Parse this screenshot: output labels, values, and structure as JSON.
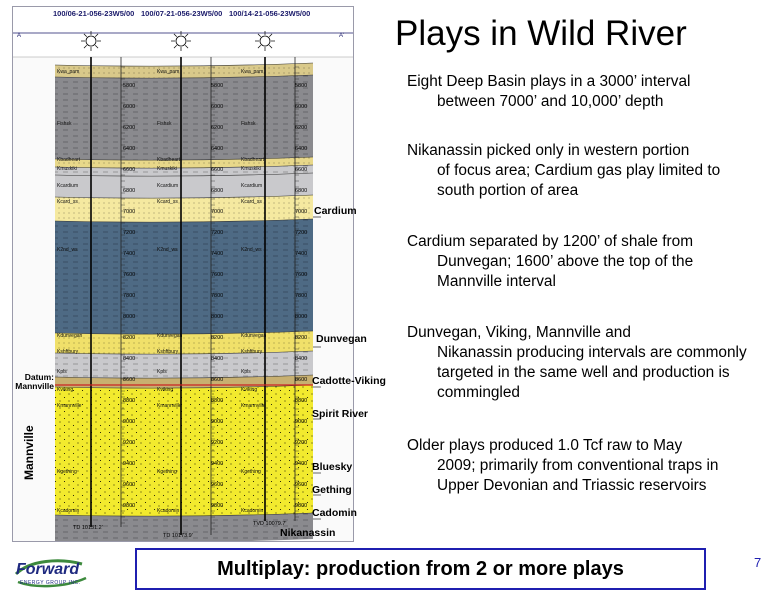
{
  "slide": {
    "title": "Plays in Wild River",
    "page_number": "7",
    "banner": "Multiplay: production from 2 or more plays"
  },
  "paragraphs": [
    {
      "first": "Eight Deep Basin plays in a 3000’ interval",
      "rest": "between 7000’ and 10,000’ depth"
    },
    {
      "first": "Nikanassin picked only in western portion",
      "rest": "of focus area; Cardium gas play limited to south portion of area"
    },
    {
      "first": "Cardium separated by 1200’ of shale from",
      "rest": "Dunvegan; 1600’ above the top of the Mannville interval"
    },
    {
      "first": "Dunvegan, Viking, Mannville and",
      "rest": "Nikanassin producing intervals are commonly targeted in the same well and production is commingled"
    },
    {
      "first": "Older plays produced 1.0 Tcf raw to May",
      "rest": "2009; primarily from conventional traps in Upper Devonian and Triassic reservoirs"
    }
  ],
  "cross_section": {
    "wells": [
      "100/06-21-056-23W5/00",
      "100/07-21-056-23W5/00",
      "100/14-21-056-23W5/00"
    ],
    "td_labels": [
      "TD 10131.2'",
      "TD 10173.9'",
      "TVD 10079.7'"
    ],
    "datum_label": "Datum:\nMannville",
    "mannville_label": "Mannville",
    "formations": {
      "cardium": "Cardium",
      "dunvegan": "Dunvegan",
      "cadotte_viking": "Cadotte-Viking",
      "spirit_river": "Spirit River",
      "bluesky": "Bluesky",
      "gething": "Gething",
      "cadomin": "Cadomin",
      "nikanassin": "Nikanassin"
    },
    "log_tops": [
      "Kwa_pam",
      "Fishsk",
      "Kbadheart",
      "Kmuskiki",
      "Kcardium",
      "Kcard_ss",
      "K2nd_ws",
      "Kdunvegan",
      "Kshftbury",
      "Kpls",
      "Kviking",
      "Kmannville",
      "Kgething",
      "Kcadomin"
    ],
    "depths": [
      "5800",
      "6000",
      "6200",
      "6400",
      "6600",
      "6800",
      "7000",
      "7200",
      "7400",
      "7600",
      "7800",
      "8000",
      "8200",
      "8400",
      "8600",
      "8800",
      "9000",
      "9200",
      "9400",
      "9600",
      "9800",
      "10000"
    ],
    "colors": {
      "shale": "#4e6a84",
      "grey_shale": "#8a8a8e",
      "sand_yellow": "#f2ea2e",
      "tan": "#d9c98a",
      "light_grey": "#c9c9cc"
    }
  },
  "logo": {
    "name": "Forward",
    "sub": "ENERGY GROUP INC."
  }
}
